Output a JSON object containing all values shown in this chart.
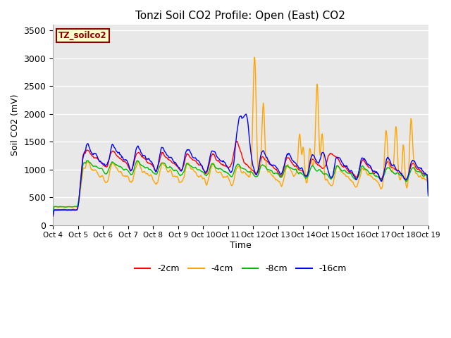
{
  "title": "Tonzi Soil CO2 Profile: Open (East) CO2",
  "ylabel": "Soil CO2 (mV)",
  "xlabel": "Time",
  "annotation": "TZ_soilco2",
  "annotation_color": "#8B0000",
  "annotation_bg": "#FFFFCC",
  "ylim": [
    0,
    3600
  ],
  "yticks": [
    0,
    500,
    1000,
    1500,
    2000,
    2500,
    3000,
    3500
  ],
  "bg_color": "#E8E8E8",
  "grid_color": "#FFFFFF",
  "line_colors": {
    "-2cm": "#FF0000",
    "-4cm": "#FFA500",
    "-8cm": "#00BB00",
    "-16cm": "#0000FF"
  },
  "xtick_labels": [
    "Oct 4",
    "Oct 5",
    "Oct 6",
    "Oct 7",
    "Oct 8",
    "Oct 9",
    "Oct 10",
    "Oct 11",
    "Oct 12",
    "Oct 13",
    "Oct 14",
    "Oct 15",
    "Oct 16",
    "Oct 17",
    "Oct 18",
    "Oct 19"
  ],
  "num_points": 720,
  "figsize": [
    6.4,
    4.8
  ],
  "dpi": 100
}
